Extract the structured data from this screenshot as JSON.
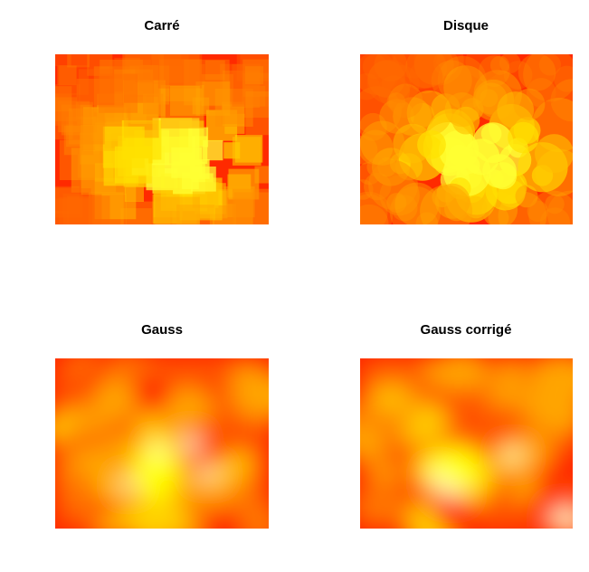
{
  "figure": {
    "background": "#ffffff",
    "palette": [
      "#ff0000",
      "#ff3300",
      "#ff6600",
      "#ff8800",
      "#ffaa00",
      "#ffcc00",
      "#ffee00",
      "#ffff00",
      "#ffff66",
      "#ffffcc"
    ]
  },
  "chart_data": [
    {
      "type": "heatmap",
      "title": "Carré",
      "kernel": "square",
      "xlabel": "",
      "ylabel": "",
      "colormap": "heat",
      "description_of_field": "overlapping semi-transparent squares; brightest region lower-center-right"
    },
    {
      "type": "heatmap",
      "title": "Disque",
      "kernel": "disc",
      "xlabel": "",
      "ylabel": "",
      "colormap": "heat",
      "description_of_field": "overlapping semi-transparent discs; brightest region lower-center-right"
    },
    {
      "type": "heatmap",
      "title": "Gauss",
      "kernel": "gaussian",
      "xlabel": "",
      "ylabel": "",
      "colormap": "heat",
      "description_of_field": "smooth filled contours; bright blobs lower-center"
    },
    {
      "type": "heatmap",
      "title": "Gauss corrigé",
      "kernel": "gaussian-corrected",
      "xlabel": "",
      "ylabel": "",
      "colormap": "heat",
      "description_of_field": "smooth filled contours, edge-corrected; bright spot lower-right corner"
    }
  ]
}
